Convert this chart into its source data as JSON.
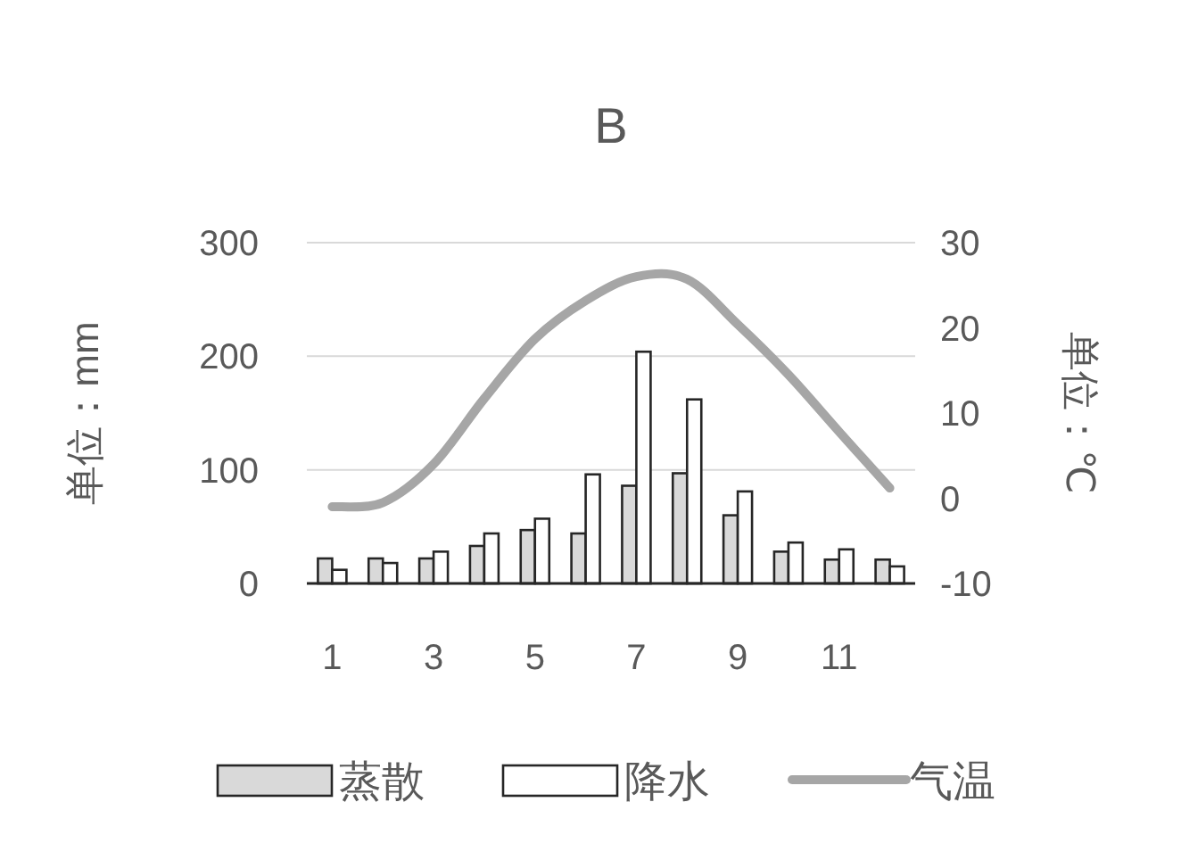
{
  "chart_data": {
    "type": "bar",
    "title": "B",
    "ylabel": "单位：mm",
    "y2label": "单位：℃",
    "categories": [
      "1",
      null,
      "3",
      null,
      "5",
      null,
      "7",
      null,
      "9",
      null,
      "11",
      null
    ],
    "series": [
      {
        "name": "蒸散",
        "color": "#d9d9d9",
        "values": [
          22,
          22,
          22,
          33,
          47,
          44,
          86,
          97,
          60,
          28,
          21,
          21
        ]
      },
      {
        "name": "降水",
        "color": "#ffffff",
        "values": [
          12,
          18,
          28,
          44,
          57,
          96,
          204,
          162,
          81,
          36,
          30,
          15
        ]
      },
      {
        "name": "气温",
        "type": "line",
        "axis": "y2",
        "color": "#a6a6a6",
        "values": [
          -1,
          -0.5,
          4,
          11.7,
          18.7,
          23.2,
          26,
          25.7,
          20.4,
          14.5,
          7.8,
          1.2
        ]
      }
    ],
    "ylim": [
      0,
      300
    ],
    "yticks": [
      0,
      100,
      200,
      300
    ],
    "y2lim": [
      -10,
      30
    ],
    "y2ticks": [
      -10,
      0,
      10,
      20,
      30
    ],
    "grid": "y",
    "legend": "bottom",
    "line_style": "solid"
  }
}
